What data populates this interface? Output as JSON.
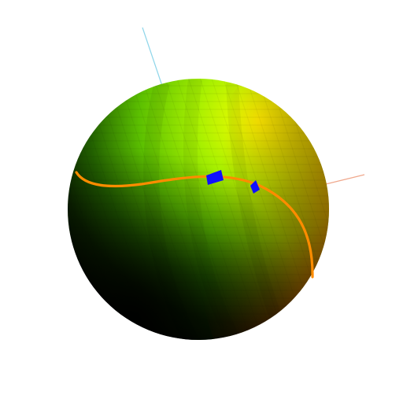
{
  "scene": {
    "background": "#ffffff",
    "sphere": {
      "color_top": "#ffff00",
      "color_green": "#66dd00",
      "color_mid_green": "#2f7a00",
      "color_dark": "#000000",
      "color_red_band": "#9a1000",
      "shading": "banded"
    },
    "axes": {
      "upper_left_color": "#8fd6ea",
      "right_color": "#f0a88c"
    },
    "path": {
      "color": "#ff8c00",
      "style": "curve"
    },
    "markers": {
      "count": 2,
      "color": "#1010ff",
      "shape": "quadrilateral"
    }
  }
}
